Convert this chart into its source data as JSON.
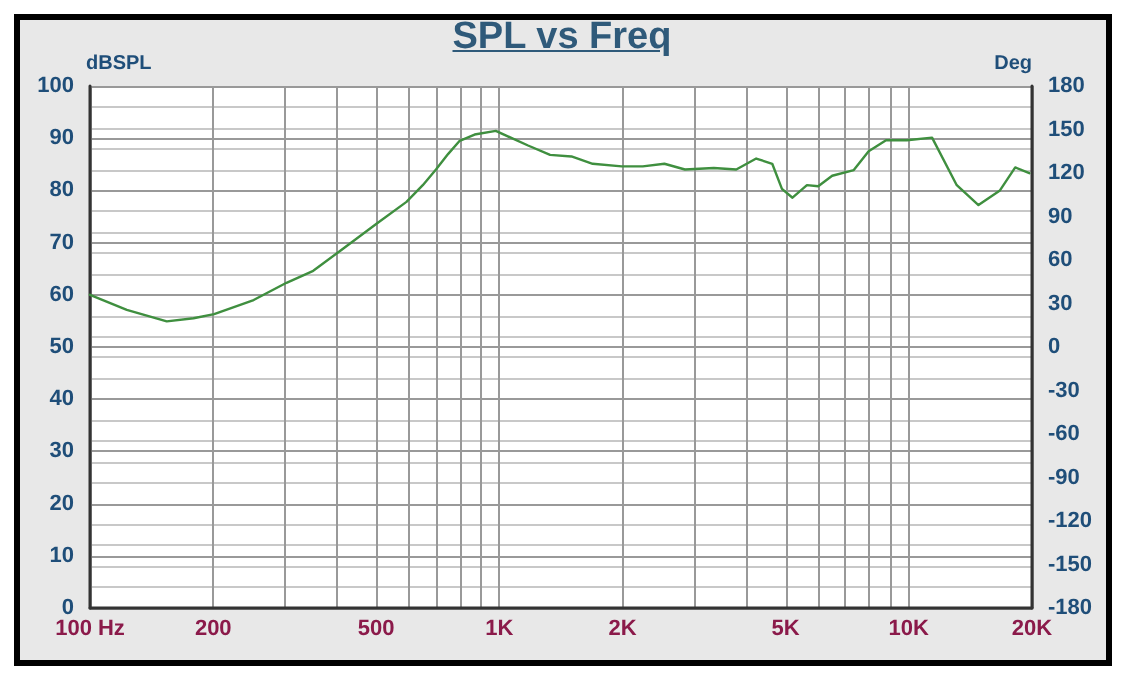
{
  "chart_data": {
    "type": "line",
    "title": "SPL vs Freq",
    "ylabel": "dBSPL",
    "y2label": "Deg",
    "log": "x",
    "grid": true,
    "marker": "none",
    "line_style": "solid",
    "xlim": [
      100,
      20000
    ],
    "xticks": [
      {
        "value": 100,
        "label": "100 Hz"
      },
      200,
      {
        "value": 300,
        "label": null
      },
      {
        "value": 400,
        "label": null
      },
      500,
      {
        "value": 600,
        "label": null
      },
      {
        "value": 700,
        "label": null
      },
      {
        "value": 800,
        "label": null
      },
      {
        "value": 900,
        "label": null
      },
      {
        "value": 1000,
        "label": "1K"
      },
      {
        "value": 2000,
        "label": "2K"
      },
      {
        "value": 3000,
        "label": null
      },
      {
        "value": 4000,
        "label": null
      },
      {
        "value": 5000,
        "label": "5K"
      },
      {
        "value": 6000,
        "label": null
      },
      {
        "value": 7000,
        "label": null
      },
      {
        "value": 8000,
        "label": null
      },
      {
        "value": 9000,
        "label": null
      },
      {
        "value": 10000,
        "label": "10K"
      },
      {
        "value": 20000,
        "label": "20K"
      }
    ],
    "ylim": [
      0,
      100
    ],
    "yticks": [
      0,
      10,
      20,
      30,
      40,
      50,
      60,
      70,
      80,
      90,
      100
    ],
    "y2lim": [
      -180,
      180
    ],
    "y2ticks": [
      -180,
      -150,
      -120,
      -90,
      -60,
      -30,
      0,
      30,
      60,
      90,
      120,
      150,
      180
    ],
    "x": [
      100,
      123,
      154,
      179,
      201,
      251,
      302,
      351,
      408,
      501,
      593,
      650,
      700,
      750,
      800,
      870,
      980,
      1175,
      1330,
      1500,
      1690,
      1990,
      2240,
      2530,
      2840,
      3340,
      3790,
      4240,
      4640,
      4900,
      5200,
      5640,
      6010,
      6500,
      7340,
      7980,
      8800,
      9900,
      11400,
      13100,
      14800,
      16700,
      18200,
      19700
    ],
    "series": [
      {
        "color": "#3f8f3f",
        "values": [
          60,
          57.1,
          54.9,
          55.5,
          56.3,
          59,
          62.3,
          64.6,
          68.4,
          73.6,
          77.8,
          81,
          84,
          87,
          89.5,
          90.7,
          91.4,
          88.6,
          86.8,
          86.5,
          85.1,
          84.6,
          84.6,
          85.1,
          84,
          84.3,
          84,
          86.1,
          85.1,
          80.3,
          78.6,
          81,
          80.8,
          82.8,
          83.9,
          87.5,
          89.6,
          89.6,
          90.1,
          81,
          77.2,
          80,
          84.4,
          83.3
        ]
      }
    ]
  }
}
